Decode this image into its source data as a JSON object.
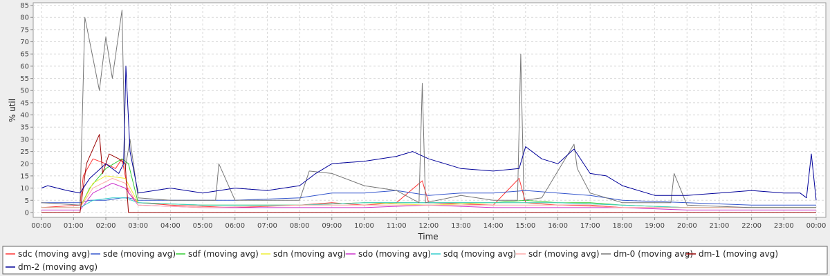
{
  "chart_data": {
    "type": "line",
    "title": "",
    "xlabel": "Time",
    "ylabel": "% util",
    "ylim": [
      -2,
      86
    ],
    "yticks": [
      0,
      5,
      10,
      15,
      20,
      25,
      30,
      35,
      40,
      45,
      50,
      55,
      60,
      65,
      70,
      75,
      80,
      85
    ],
    "xlim": [
      -0.25,
      24.3
    ],
    "xticks": [
      "00:00",
      "01:00",
      "02:00",
      "03:00",
      "04:00",
      "05:00",
      "06:00",
      "07:00",
      "08:00",
      "09:00",
      "10:00",
      "11:00",
      "12:00",
      "13:00",
      "14:00",
      "15:00",
      "16:00",
      "17:00",
      "18:00",
      "19:00",
      "20:00",
      "21:00",
      "22:00",
      "23:00",
      "00:00"
    ],
    "x_unit": "hours",
    "grid": true,
    "legend_placement": "bottom",
    "series": [
      {
        "name": "sdc (moving avg)",
        "color": "#ff3333",
        "x": [
          0,
          1.2,
          1.3,
          1.6,
          2,
          2.3,
          2.5,
          2.7,
          3,
          4,
          6,
          8,
          9,
          10,
          11,
          11.8,
          12,
          14,
          14.8,
          15,
          16,
          17,
          18,
          20,
          22,
          24
        ],
        "values": [
          2,
          3,
          15,
          22,
          20,
          18,
          22,
          8,
          4,
          3,
          2,
          3,
          4,
          3,
          4,
          13,
          4,
          3,
          14,
          4,
          3,
          3,
          2,
          2,
          2,
          2
        ]
      },
      {
        "name": "sde (moving avg)",
        "color": "#3355cc",
        "x": [
          0,
          1.2,
          1.5,
          2,
          2.5,
          2.7,
          3,
          4,
          6,
          8,
          9,
          10,
          11,
          12,
          13,
          14,
          15,
          16,
          17,
          18,
          20,
          22,
          24
        ],
        "values": [
          4,
          4,
          5,
          5,
          6,
          6,
          5,
          5,
          5,
          6,
          8,
          8,
          9,
          7,
          8,
          8,
          9,
          8,
          7,
          5,
          4,
          3,
          3
        ]
      },
      {
        "name": "sdf (moving avg)",
        "color": "#33cc33",
        "x": [
          0,
          1.2,
          1.5,
          2,
          2.5,
          2.7,
          3,
          5,
          8,
          10,
          12,
          14,
          15,
          16,
          17,
          18,
          20,
          22,
          24
        ],
        "values": [
          2,
          2,
          10,
          18,
          22,
          20,
          4,
          3,
          3,
          4,
          4,
          4,
          5,
          4,
          4,
          3,
          2,
          2,
          2
        ]
      },
      {
        "name": "sdn (moving avg)",
        "color": "#eeee33",
        "x": [
          0,
          1.2,
          1.6,
          2,
          2.6,
          3,
          5,
          8,
          10,
          12,
          14,
          16,
          18,
          20,
          24
        ],
        "values": [
          2,
          2,
          12,
          15,
          14,
          4,
          3,
          3,
          4,
          3,
          4,
          4,
          3,
          2,
          2
        ]
      },
      {
        "name": "sdo (moving avg)",
        "color": "#cc33cc",
        "x": [
          0,
          1.2,
          1.6,
          2.2,
          2.6,
          3,
          5,
          8,
          10,
          12,
          14,
          16,
          18,
          20,
          24
        ],
        "values": [
          1,
          1,
          8,
          12,
          10,
          3,
          2,
          2,
          2,
          3,
          2,
          2,
          2,
          1,
          1
        ]
      },
      {
        "name": "sdq (moving avg)",
        "color": "#33cccc",
        "x": [
          0,
          1.2,
          1.6,
          2.2,
          2.6,
          3,
          5,
          8,
          10,
          12,
          14,
          16,
          18,
          20,
          24
        ],
        "values": [
          2,
          2,
          5,
          6,
          6,
          4,
          3,
          3,
          4,
          4,
          4,
          4,
          3,
          2,
          2
        ]
      },
      {
        "name": "sdr (moving avg)",
        "color": "#ffaaaa",
        "x": [
          0,
          1.2,
          1.6,
          2.2,
          2.6,
          3,
          5,
          8,
          10,
          12,
          14,
          16,
          18,
          20,
          24
        ],
        "values": [
          2,
          2,
          10,
          14,
          12,
          3,
          2,
          3,
          3,
          3,
          3,
          3,
          2,
          2,
          2
        ]
      },
      {
        "name": "dm-0 (moving avg)",
        "color": "#777777",
        "x": [
          0,
          1.2,
          1.35,
          1.5,
          1.8,
          2,
          2.2,
          2.5,
          2.6,
          2.75,
          3,
          4,
          5.4,
          5.5,
          6,
          8,
          8.3,
          9,
          10,
          11,
          11.7,
          11.8,
          11.9,
          13,
          14,
          14.75,
          14.85,
          14.95,
          15.5,
          16.5,
          16.6,
          17,
          18,
          19.5,
          19.6,
          20,
          22,
          24
        ],
        "values": [
          4,
          3,
          80,
          70,
          50,
          72,
          55,
          83,
          18,
          30,
          6,
          5,
          5,
          20,
          5,
          5,
          17,
          16,
          11,
          9,
          4,
          53,
          4,
          7,
          5,
          5,
          65,
          5,
          6,
          28,
          18,
          8,
          4,
          4,
          16,
          3,
          2,
          2
        ]
      },
      {
        "name": "dm-1 (moving avg)",
        "color": "#990000",
        "x": [
          0,
          1.2,
          1.4,
          1.8,
          1.9,
          2.1,
          2.4,
          2.6,
          2.7,
          3,
          5,
          8,
          10,
          12,
          14,
          16,
          18,
          20,
          24
        ],
        "values": [
          0,
          0,
          20,
          32,
          16,
          24,
          22,
          20,
          0,
          0,
          0,
          0,
          0,
          0,
          0,
          0,
          0,
          0,
          0
        ]
      },
      {
        "name": "dm-2 (moving avg)",
        "color": "#000099",
        "x": [
          0,
          0.2,
          0.8,
          1.2,
          1.5,
          2,
          2.4,
          2.55,
          2.62,
          2.75,
          3,
          4,
          5,
          6,
          7,
          8,
          8.5,
          9,
          10,
          11,
          11.5,
          12,
          13,
          14,
          14.8,
          15,
          15.5,
          16,
          16.5,
          17,
          17.5,
          18,
          19,
          20,
          21,
          22,
          23,
          23.5,
          23.7,
          23.85,
          24
        ],
        "values": [
          10,
          11,
          9,
          8,
          14,
          20,
          16,
          20,
          60,
          25,
          8,
          10,
          8,
          10,
          9,
          11,
          16,
          20,
          21,
          23,
          25,
          22,
          18,
          17,
          18,
          27,
          22,
          20,
          26,
          16,
          15,
          11,
          7,
          7,
          8,
          9,
          8,
          8,
          6,
          24,
          5
        ]
      }
    ]
  }
}
